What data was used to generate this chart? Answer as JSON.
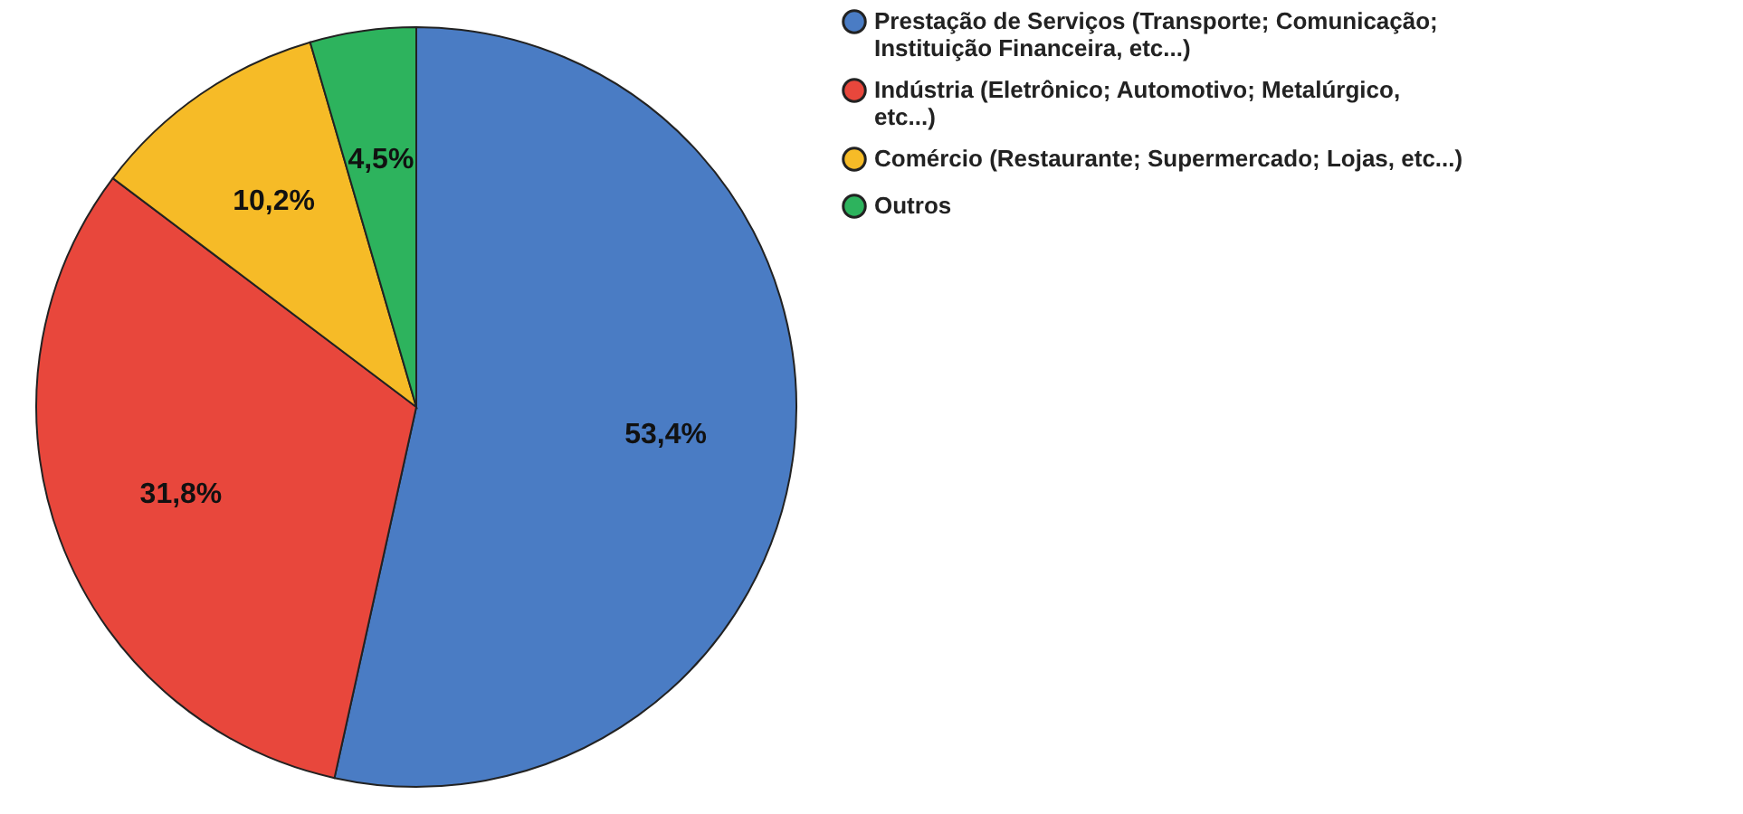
{
  "chart_data": {
    "type": "pie",
    "categories": [
      "Prestação de Serviços (Transporte; Comunicação; Instituição Financeira, etc...)",
      "Indústria (Eletrônico; Automotivo; Metalúrgico, etc...)",
      "Comércio (Restaurante; Supermercado; Lojas, etc...)",
      "Outros"
    ],
    "values": [
      53.4,
      31.8,
      10.2,
      4.5
    ],
    "colors": [
      "#4a7cc4",
      "#e8473c",
      "#f6bb27",
      "#2db35d"
    ],
    "value_labels": [
      "53,4%",
      "31,8%",
      "10,2%",
      "4,5%"
    ],
    "legend": "right"
  }
}
